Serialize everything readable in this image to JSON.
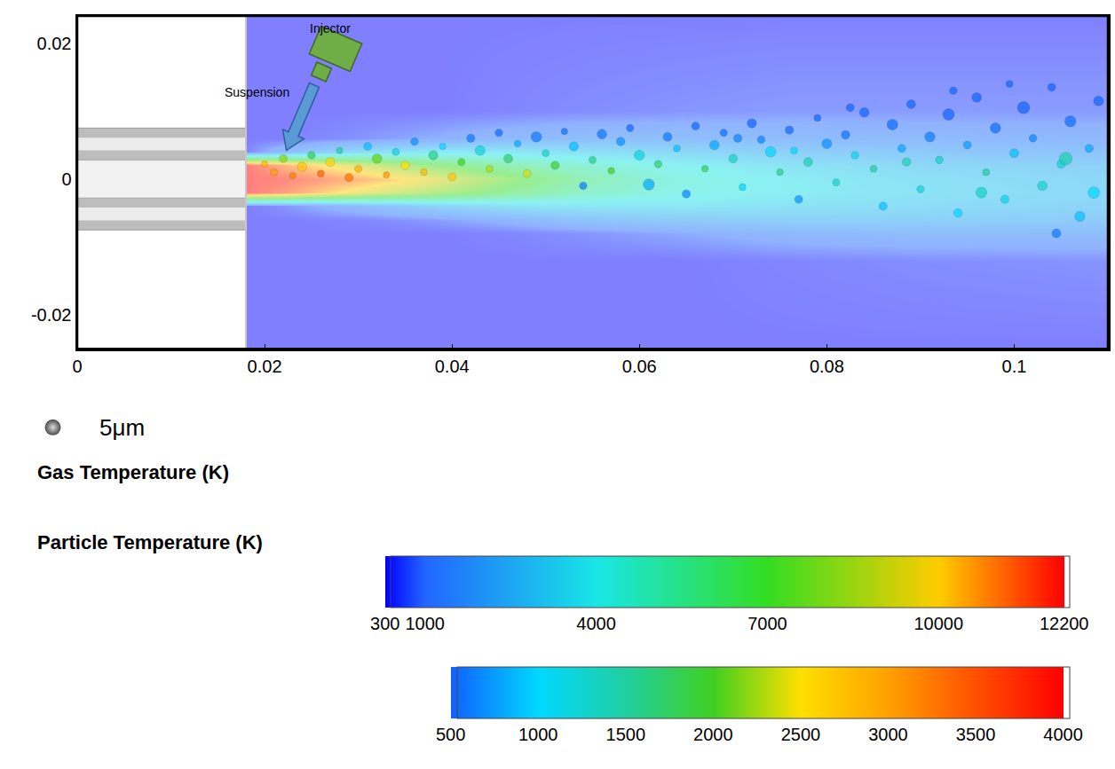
{
  "chart_data": {
    "type": "heatmap",
    "xlim": [
      0,
      0.11
    ],
    "xticks": [
      0,
      0.02,
      0.04,
      0.06,
      0.08,
      0.1
    ],
    "ylim": [
      -0.025,
      0.024
    ],
    "yticks": [
      -0.02,
      0,
      0.02
    ],
    "grid": false,
    "annotations": {
      "injector": "Injector",
      "suspension": "Suspension"
    },
    "nozzle": {
      "exit_x": 0.018,
      "radius": 0.0075,
      "bore_radius": 0.0028
    },
    "gas_temperature": {
      "title": "Gas Temperature (K)",
      "range": [
        300,
        12200
      ],
      "ticks": [
        300,
        1000,
        4000,
        7000,
        10000,
        12200
      ],
      "x": [
        0.018,
        0.022,
        0.03,
        0.038,
        0.046,
        0.054,
        0.064,
        0.076,
        0.09,
        0.11
      ],
      "y": [
        -0.025,
        -0.012,
        -0.008,
        -0.006,
        -0.004,
        -0.002,
        0,
        0.002,
        0.004,
        0.006,
        0.01,
        0.025
      ],
      "values": [
        [
          300,
          300,
          300,
          300,
          300,
          300,
          300,
          300,
          300,
          300
        ],
        [
          300,
          300,
          300,
          300,
          300,
          300,
          300,
          400,
          500,
          600
        ],
        [
          300,
          300,
          300,
          300,
          400,
          600,
          900,
          1300,
          1500,
          1500
        ],
        [
          300,
          300,
          400,
          700,
          1200,
          1800,
          2200,
          2400,
          2400,
          2200
        ],
        [
          300,
          600,
          1500,
          2500,
          3200,
          3500,
          3500,
          3300,
          3000,
          2600
        ],
        [
          12200,
          11500,
          9500,
          8000,
          6500,
          5200,
          4300,
          3800,
          3300,
          2800
        ],
        [
          12200,
          12000,
          11000,
          9500,
          7500,
          5800,
          4500,
          3800,
          3200,
          2700
        ],
        [
          12200,
          11000,
          9000,
          7200,
          5800,
          4800,
          4000,
          3300,
          2800,
          2400
        ],
        [
          400,
          1500,
          3000,
          3500,
          3500,
          3200,
          2800,
          2400,
          2100,
          1800
        ],
        [
          300,
          300,
          600,
          1000,
          1400,
          1600,
          1600,
          1500,
          1400,
          1300
        ],
        [
          300,
          300,
          300,
          300,
          400,
          500,
          600,
          700,
          700,
          700
        ],
        [
          300,
          300,
          300,
          300,
          300,
          300,
          300,
          300,
          300,
          300
        ]
      ]
    },
    "particles": {
      "type": "scatter",
      "title": "Particle Temperature (K)",
      "range": [
        500,
        4000
      ],
      "ticks": [
        500,
        1000,
        1500,
        2000,
        2500,
        3000,
        3500,
        4000
      ],
      "size_reference": {
        "diameter": 5,
        "label": "5μm"
      },
      "x": [
        0.02,
        0.021,
        0.022,
        0.023,
        0.024,
        0.025,
        0.026,
        0.027,
        0.028,
        0.029,
        0.03,
        0.031,
        0.032,
        0.033,
        0.034,
        0.035,
        0.036,
        0.037,
        0.038,
        0.039,
        0.04,
        0.041,
        0.042,
        0.043,
        0.044,
        0.045,
        0.046,
        0.047,
        0.048,
        0.049,
        0.05,
        0.051,
        0.052,
        0.053,
        0.054,
        0.055,
        0.056,
        0.057,
        0.058,
        0.059,
        0.06,
        0.061,
        0.062,
        0.063,
        0.064,
        0.065,
        0.066,
        0.067,
        0.068,
        0.069,
        0.07,
        0.071,
        0.072,
        0.073,
        0.074,
        0.075,
        0.076,
        0.077,
        0.078,
        0.079,
        0.08,
        0.081,
        0.082,
        0.083,
        0.084,
        0.085,
        0.086,
        0.087,
        0.088,
        0.089,
        0.09,
        0.091,
        0.092,
        0.093,
        0.094,
        0.095,
        0.096,
        0.097,
        0.098,
        0.099,
        0.1,
        0.101,
        0.102,
        0.103,
        0.104,
        0.105,
        0.106,
        0.107,
        0.108,
        0.109,
        0.1045,
        0.0995,
        0.0935,
        0.0885,
        0.0825,
        0.0765,
        0.0705,
        0.1055,
        0.1085,
        0.0965
      ],
      "y": [
        0.0022,
        0.001,
        0.003,
        0.0005,
        0.0018,
        0.0035,
        0.0008,
        0.0025,
        0.0042,
        0.0002,
        0.0015,
        0.0048,
        0.003,
        0.0006,
        0.004,
        0.002,
        0.0055,
        0.001,
        0.0035,
        0.0048,
        0.0003,
        0.0025,
        0.006,
        0.0042,
        0.0015,
        0.0068,
        0.003,
        0.0052,
        0.0008,
        0.0062,
        0.0038,
        0.002,
        0.007,
        0.0048,
        -0.001,
        0.0028,
        0.0066,
        0.0012,
        0.0055,
        0.0075,
        0.0035,
        -0.0008,
        0.0022,
        0.0062,
        0.0045,
        -0.0022,
        0.0078,
        0.0015,
        0.005,
        0.0068,
        0.003,
        -0.0012,
        0.0082,
        0.0058,
        0.004,
        0.001,
        0.0072,
        -0.003,
        0.0025,
        0.009,
        0.0052,
        -0.0005,
        0.0065,
        0.0035,
        0.0098,
        0.0015,
        -0.004,
        0.008,
        0.0045,
        0.011,
        -0.0015,
        0.0062,
        0.0028,
        0.0095,
        -0.005,
        0.005,
        0.012,
        0.001,
        0.0075,
        -0.003,
        0.0038,
        0.0105,
        0.006,
        -0.001,
        0.0135,
        0.0022,
        0.0085,
        -0.0055,
        0.0045,
        0.0115,
        -0.008,
        0.014,
        0.013,
        0.0025,
        0.0105,
        0.0042,
        0.006,
        0.003,
        -0.002,
        -0.002
      ],
      "temperature": [
        2800,
        3000,
        2200,
        3200,
        2700,
        1800,
        3400,
        2600,
        1500,
        3300,
        2900,
        900,
        2100,
        3100,
        1200,
        2500,
        700,
        2800,
        1600,
        1000,
        2700,
        2000,
        600,
        1200,
        2300,
        550,
        1700,
        800,
        2400,
        600,
        1300,
        1900,
        550,
        900,
        600,
        1600,
        600,
        2000,
        700,
        520,
        1200,
        800,
        1700,
        600,
        900,
        650,
        520,
        1800,
        800,
        560,
        1300,
        1000,
        520,
        650,
        1000,
        1600,
        550,
        700,
        1400,
        520,
        700,
        1300,
        580,
        1100,
        520,
        1500,
        900,
        550,
        800,
        520,
        1200,
        620,
        1300,
        520,
        1000,
        750,
        520,
        1500,
        560,
        1100,
        900,
        520,
        650,
        1300,
        520,
        1200,
        560,
        900,
        800,
        520,
        600,
        520,
        520,
        1400,
        520,
        1000,
        650,
        1400,
        1000,
        1300
      ],
      "diameter": [
        2.0,
        2.2,
        2.5,
        2.0,
        3.0,
        2.4,
        2.2,
        2.8,
        2.0,
        2.6,
        2.3,
        2.5,
        3.0,
        2.0,
        2.2,
        2.7,
        2.4,
        2.1,
        2.9,
        2.0,
        2.5,
        2.3,
        2.6,
        3.1,
        2.2,
        2.4,
        2.8,
        2.1,
        2.5,
        3.3,
        2.2,
        2.6,
        2.0,
        2.9,
        2.4,
        2.3,
        3.0,
        2.1,
        2.7,
        2.3,
        3.2,
        3.5,
        2.4,
        2.8,
        2.2,
        2.6,
        2.5,
        2.1,
        3.0,
        2.3,
        2.7,
        2.2,
        2.9,
        2.4,
        3.3,
        2.1,
        2.6,
        2.5,
        2.8,
        2.2,
        3.1,
        2.3,
        2.7,
        2.4,
        3.0,
        2.2,
        2.6,
        3.4,
        2.5,
        2.8,
        2.3,
        3.2,
        2.4,
        3.6,
        2.7,
        2.5,
        3.0,
        2.2,
        3.3,
        2.6,
        2.8,
        3.8,
        2.4,
        3.0,
        2.5,
        2.7,
        3.5,
        3.2,
        2.6,
        3.1,
        2.8,
        2.2,
        2.4,
        2.6,
        2.5,
        2.2,
        2.6,
        4.0,
        3.6,
        3.4
      ]
    }
  }
}
